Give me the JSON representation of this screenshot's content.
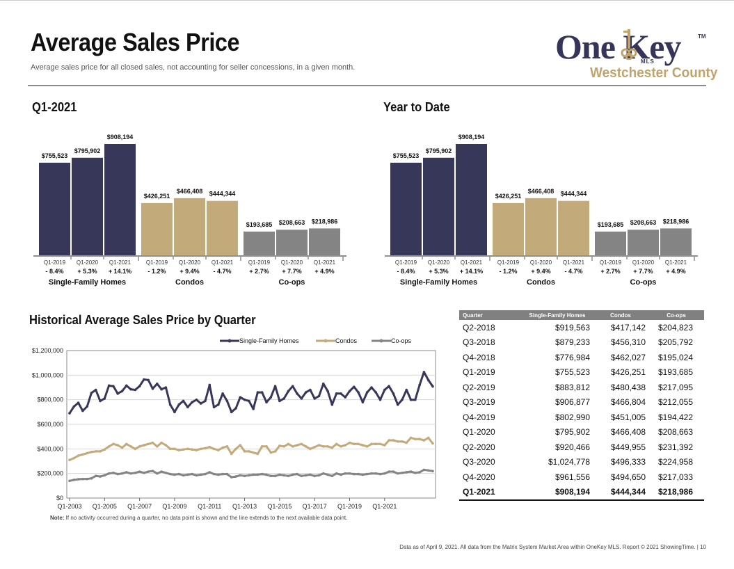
{
  "header": {
    "title": "Average Sales Price",
    "subtitle": "Average sales price for all closed sales, not accounting for seller concessions, in a given month."
  },
  "logo": {
    "brand": "One Key",
    "mls": "MLS",
    "tm": "TM",
    "region": "Westchester County"
  },
  "colors": {
    "sfh": "#37375a",
    "condo": "#c2aa7a",
    "coop": "#848484",
    "rule": "#8a8a8a"
  },
  "chart_data": [
    {
      "type": "bar",
      "title": "Q1-2021",
      "groups": [
        {
          "name": "Single-Family Homes",
          "categories": [
            "Q1-2019",
            "Q1-2020",
            "Q1-2021"
          ],
          "values": [
            755523,
            795902,
            908194
          ],
          "labels": [
            "$755,523",
            "$795,902",
            "$908,194"
          ],
          "changes": [
            "- 8.4%",
            "+ 5.3%",
            "+ 14.1%"
          ]
        },
        {
          "name": "Condos",
          "categories": [
            "Q1-2019",
            "Q1-2020",
            "Q1-2021"
          ],
          "values": [
            426251,
            466408,
            444344
          ],
          "labels": [
            "$426,251",
            "$466,408",
            "$444,344"
          ],
          "changes": [
            "- 1.2%",
            "+ 9.4%",
            "- 4.7%"
          ]
        },
        {
          "name": "Co-ops",
          "categories": [
            "Q1-2019",
            "Q1-2020",
            "Q1-2021"
          ],
          "values": [
            193685,
            208663,
            218986
          ],
          "labels": [
            "$193,685",
            "$208,663",
            "$218,986"
          ],
          "changes": [
            "+ 2.7%",
            "+ 7.7%",
            "+ 4.9%"
          ]
        }
      ]
    },
    {
      "type": "bar",
      "title": "Year to Date",
      "groups": [
        {
          "name": "Single-Family Homes",
          "categories": [
            "Q1-2019",
            "Q1-2020",
            "Q1-2021"
          ],
          "values": [
            755523,
            795902,
            908194
          ],
          "labels": [
            "$755,523",
            "$795,902",
            "$908,194"
          ],
          "changes": [
            "- 8.4%",
            "+ 5.3%",
            "+ 14.1%"
          ]
        },
        {
          "name": "Condos",
          "categories": [
            "Q1-2019",
            "Q1-2020",
            "Q1-2021"
          ],
          "values": [
            426251,
            466408,
            444344
          ],
          "labels": [
            "$426,251",
            "$466,408",
            "$444,344"
          ],
          "changes": [
            "- 1.2%",
            "+ 9.4%",
            "- 4.7%"
          ]
        },
        {
          "name": "Co-ops",
          "categories": [
            "Q1-2019",
            "Q1-2020",
            "Q1-2021"
          ],
          "values": [
            193685,
            208663,
            218986
          ],
          "labels": [
            "$193,685",
            "$208,663",
            "$218,986"
          ],
          "changes": [
            "+ 2.7%",
            "+ 7.7%",
            "+ 4.9%"
          ]
        }
      ]
    },
    {
      "type": "line",
      "title": "Historical Average Sales Price by Quarter",
      "ylim": [
        0,
        1200000
      ],
      "yticks": [
        0,
        200000,
        400000,
        600000,
        800000,
        1000000,
        1200000
      ],
      "ytick_labels": [
        "$0",
        "$200,000",
        "$400,000",
        "$600,000",
        "$800,000",
        "$1,000,000",
        "$1,200,000"
      ],
      "xtick_labels": [
        "Q1-2003",
        "Q1-2005",
        "Q1-2007",
        "Q1-2009",
        "Q1-2011",
        "Q1-2013",
        "Q1-2015",
        "Q1-2017",
        "Q1-2019",
        "Q1-2021"
      ],
      "x_start": "Q1-2003",
      "grid": true,
      "legend": "top-right",
      "series": [
        {
          "name": "Single-Family Homes",
          "values": [
            690000,
            745000,
            775000,
            710000,
            745000,
            855000,
            880000,
            790000,
            810000,
            915000,
            910000,
            850000,
            870000,
            915000,
            885000,
            880000,
            910000,
            965000,
            960000,
            890000,
            930000,
            885000,
            900000,
            760000,
            700000,
            760000,
            790000,
            740000,
            780000,
            800000,
            770000,
            790000,
            920000,
            740000,
            760000,
            850000,
            790000,
            700000,
            730000,
            820000,
            800000,
            790000,
            725000,
            860000,
            860000,
            780000,
            820000,
            910000,
            790000,
            810000,
            870000,
            910000,
            850000,
            810000,
            860000,
            880000,
            810000,
            830000,
            930000,
            870000,
            760000,
            850000,
            850000,
            820000,
            870000,
            905000,
            860000,
            780000,
            860000,
            900000,
            860000,
            800000,
            880000,
            910000,
            850000,
            760000,
            800000,
            880000,
            800000,
            800000,
            920000,
            1025000,
            960000,
            908194
          ]
        },
        {
          "name": "Condos",
          "values": [
            310000,
            325000,
            345000,
            355000,
            365000,
            375000,
            380000,
            380000,
            395000,
            420000,
            440000,
            430000,
            410000,
            440000,
            420000,
            400000,
            420000,
            430000,
            440000,
            450000,
            420000,
            450000,
            430000,
            400000,
            400000,
            390000,
            395000,
            400000,
            395000,
            390000,
            400000,
            405000,
            415000,
            400000,
            390000,
            410000,
            420000,
            360000,
            400000,
            430000,
            380000,
            380000,
            370000,
            360000,
            420000,
            420000,
            370000,
            380000,
            425000,
            420000,
            440000,
            420000,
            430000,
            440000,
            420000,
            400000,
            415000,
            430000,
            420000,
            420000,
            410000,
            440000,
            420000,
            430000,
            450000,
            440000,
            440000,
            430000,
            420000,
            440000,
            440000,
            440000,
            430000,
            470000,
            470000,
            460000,
            460000,
            450000,
            490000,
            480000,
            480000,
            470000,
            490000,
            444344
          ]
        },
        {
          "name": "Co-ops",
          "values": [
            140000,
            148000,
            153000,
            155000,
            155000,
            160000,
            180000,
            175000,
            185000,
            200000,
            205000,
            195000,
            200000,
            210000,
            200000,
            205000,
            215000,
            205000,
            215000,
            220000,
            200000,
            215000,
            205000,
            195000,
            190000,
            195000,
            185000,
            190000,
            195000,
            185000,
            190000,
            195000,
            210000,
            195000,
            190000,
            195000,
            195000,
            170000,
            175000,
            185000,
            180000,
            185000,
            190000,
            190000,
            195000,
            190000,
            180000,
            180000,
            190000,
            185000,
            180000,
            190000,
            195000,
            180000,
            185000,
            190000,
            180000,
            185000,
            200000,
            190000,
            180000,
            200000,
            190000,
            200000,
            200000,
            195000,
            195000,
            190000,
            195000,
            200000,
            200000,
            195000,
            200000,
            215000,
            215000,
            200000,
            205000,
            210000,
            215000,
            205000,
            210000,
            230000,
            225000,
            218986
          ]
        }
      ]
    }
  ],
  "note": {
    "label": "Note:",
    "text": " If no activity occurred during a quarter, no data point is shown and the line extends to the next available data point."
  },
  "table": {
    "headers": [
      "Quarter",
      "Single-Family Homes",
      "Condos",
      "Co-ops"
    ],
    "rows": [
      [
        "Q2-2018",
        "$919,563",
        "$417,142",
        "$204,823"
      ],
      [
        "Q3-2018",
        "$879,233",
        "$456,310",
        "$205,792"
      ],
      [
        "Q4-2018",
        "$776,984",
        "$462,027",
        "$195,024"
      ],
      [
        "Q1-2019",
        "$755,523",
        "$426,251",
        "$193,685"
      ],
      [
        "Q2-2019",
        "$883,812",
        "$480,438",
        "$217,095"
      ],
      [
        "Q3-2019",
        "$906,877",
        "$466,804",
        "$212,055"
      ],
      [
        "Q4-2019",
        "$802,990",
        "$451,005",
        "$194,422"
      ],
      [
        "Q1-2020",
        "$795,902",
        "$466,408",
        "$208,663"
      ],
      [
        "Q2-2020",
        "$920,466",
        "$449,955",
        "$231,392"
      ],
      [
        "Q3-2020",
        "$1,024,778",
        "$496,333",
        "$224,958"
      ],
      [
        "Q4-2020",
        "$961,556",
        "$494,650",
        "$217,033"
      ],
      [
        "Q1-2021",
        "$908,194",
        "$444,344",
        "$218,986"
      ]
    ]
  },
  "footer": "Data as of April 9, 2021. All data from the Matrix System Market Area within OneKey MLS. Report © 2021 ShowingTime. |  10"
}
